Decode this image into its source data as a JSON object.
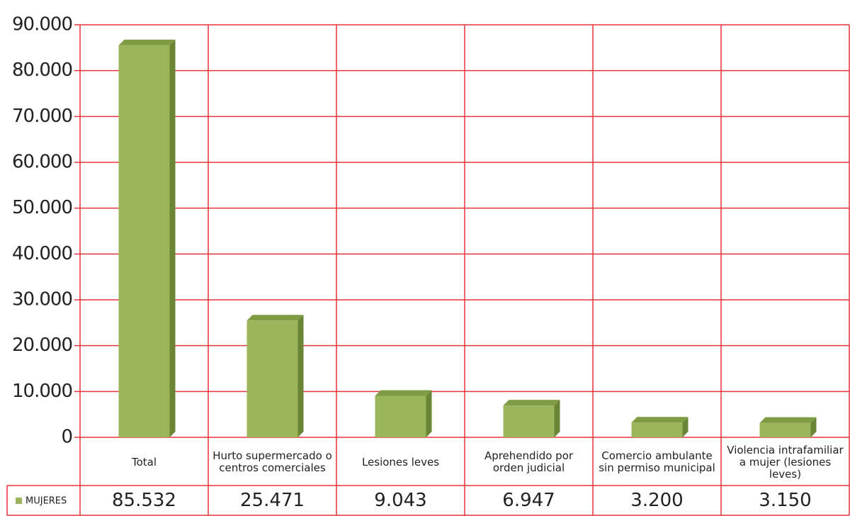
{
  "chart_data": {
    "type": "bar",
    "categories": [
      "Total",
      "Hurto supermercado o centros comerciales",
      "Lesiones leves",
      "Aprehendido por orden judicial",
      "Comercio ambulante sin permiso municipal",
      "Violencia intrafamiliar a mujer (lesiones leves)"
    ],
    "series": [
      {
        "name": "MUJERES",
        "color": "#9bb55a",
        "values": [
          85532,
          25471,
          9043,
          6947,
          3200,
          3150
        ],
        "value_labels": [
          "85.532",
          "25.471",
          "9.043",
          "6.947",
          "3.200",
          "3.150"
        ]
      }
    ],
    "ylim": [
      0,
      90000
    ],
    "yticks": [
      0,
      {
        "value": 10000,
        "label": "10.000"
      },
      {
        "value": 20000,
        "label": "20.000"
      },
      {
        "value": 30000,
        "label": "30.000"
      },
      {
        "value": 40000,
        "label": "40.000"
      },
      {
        "value": 50000,
        "label": "50.000"
      },
      {
        "value": 60000,
        "label": "60.000"
      },
      {
        "value": 70000,
        "label": "70.000"
      },
      {
        "value": 80000,
        "label": "80.000"
      },
      {
        "value": 90000,
        "label": "90.000"
      }
    ],
    "grid": true,
    "grid_color": "#e8303a"
  }
}
